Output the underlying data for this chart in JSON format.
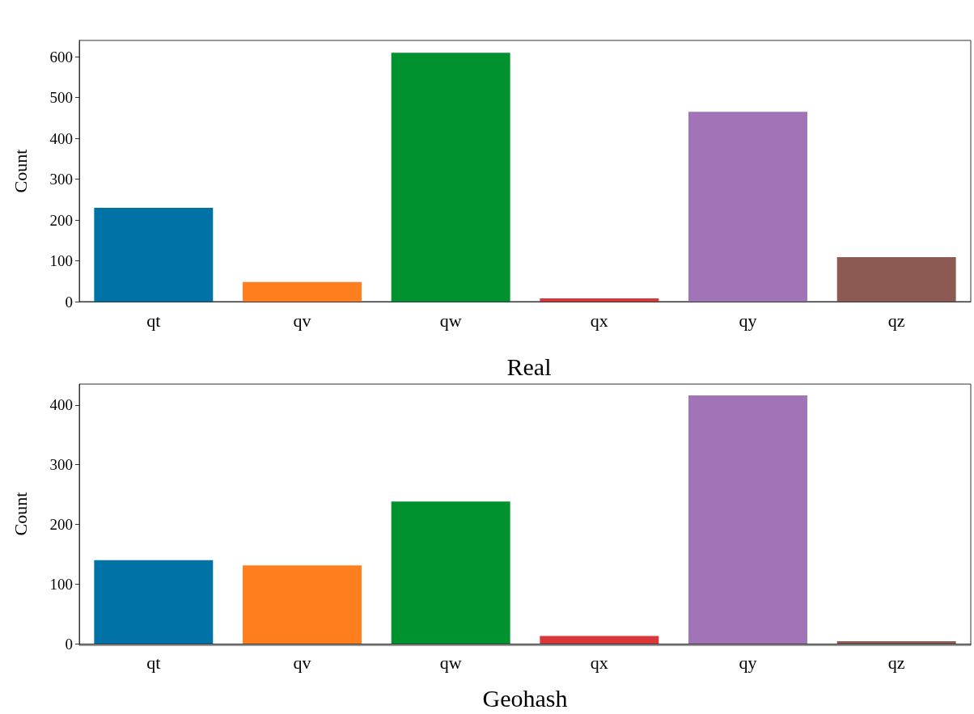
{
  "chart_data": [
    {
      "type": "bar",
      "ylabel": "Count",
      "categories": [
        "qt",
        "qv",
        "qw",
        "qx",
        "qy",
        "qz"
      ],
      "values": [
        230,
        48,
        610,
        8,
        465,
        109
      ],
      "colors": [
        "#0072a6",
        "#ff7f1f",
        "#00922e",
        "#d9373a",
        "#a074b6",
        "#8c5a52"
      ],
      "ylim": [
        0,
        640
      ],
      "yticks": [
        0,
        100,
        200,
        300,
        400,
        500,
        600
      ],
      "grid": false
    },
    {
      "type": "bar",
      "title": "Real",
      "xlabel": "Geohash",
      "ylabel": "Count",
      "categories": [
        "qt",
        "qv",
        "qw",
        "qx",
        "qy",
        "qz"
      ],
      "values": [
        140,
        131,
        238,
        13,
        416,
        4
      ],
      "colors": [
        "#0072a6",
        "#ff7f1f",
        "#00922e",
        "#d9373a",
        "#a074b6",
        "#8c5a52"
      ],
      "ylim": [
        0,
        435
      ],
      "yticks": [
        0,
        100,
        200,
        300,
        400
      ],
      "grid": false
    }
  ]
}
